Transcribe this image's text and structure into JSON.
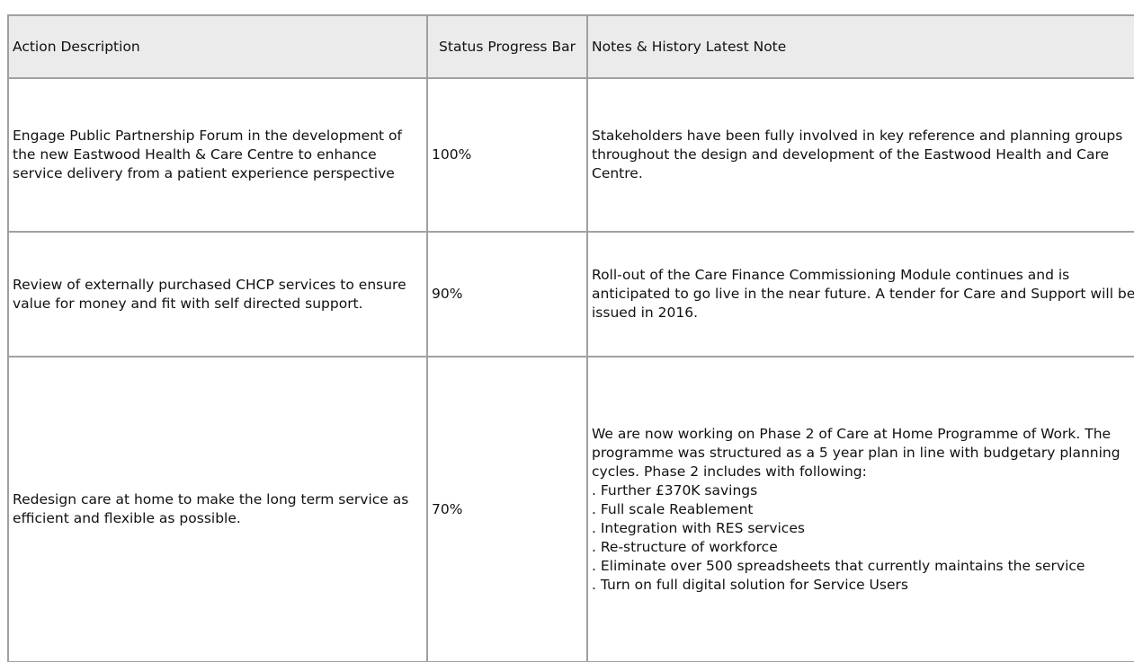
{
  "table": {
    "headers": [
      "Action Description",
      "Status Progress Bar",
      "Notes & History Latest Note"
    ],
    "rows": [
      {
        "action": "Engage Public Partnership Forum in the development of the new Eastwood Health & Care Centre to enhance service delivery from a patient experience perspective",
        "progress": 100,
        "progress_label": "100%",
        "notes": [
          "Stakeholders have been fully involved in key reference and planning groups throughout the design and development of the Eastwood Health and Care Centre."
        ]
      },
      {
        "action": "Review of externally purchased CHCP services to ensure value for money and fit with self directed support.",
        "progress": 90,
        "progress_label": "90%",
        "notes": [
          "Roll-out of the Care Finance Commissioning Module continues and is anticipated to go live in the near future. A tender for Care and Support will be issued in 2016."
        ]
      },
      {
        "action": "Redesign care at home to make the long term service as efficient and flexible as possible.",
        "progress": 70,
        "progress_label": "70%",
        "notes": [
          "We are now working on Phase 2 of Care at Home Programme of Work. The programme was structured as a 5 year plan in line with budgetary planning cycles. Phase 2 includes with following:",
          ". Further £370K savings",
          ". Full scale Reablement",
          ". Integration with RES services",
          ". Re-structure of workforce",
          ". Eliminate over 500 spreadsheets that currently maintains the service",
          ". Turn on full digital solution for Service Users"
        ]
      }
    ]
  }
}
